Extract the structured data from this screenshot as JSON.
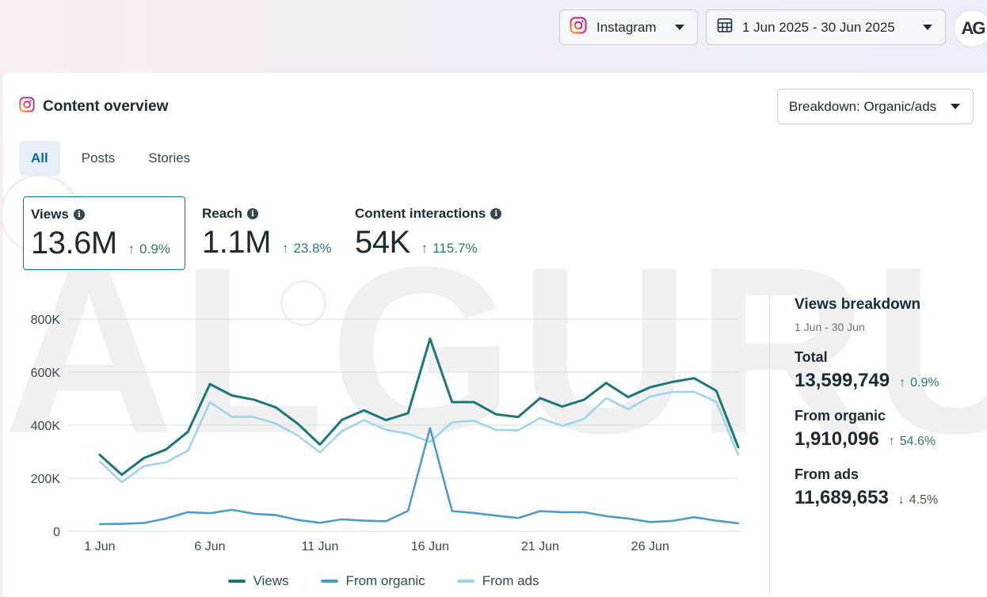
{
  "topbar": {
    "platform_label": "Instagram",
    "date_range_label": "1 Jun 2025 - 30 Jun 2025",
    "avatar_text": "AG"
  },
  "card": {
    "title": "Content overview",
    "breakdown_label": "Breakdown: Organic/ads",
    "watermark_text": "ALGURUS",
    "tabs": [
      {
        "label": "All",
        "active": true
      },
      {
        "label": "Posts",
        "active": false
      },
      {
        "label": "Stories",
        "active": false
      }
    ],
    "metrics": [
      {
        "label": "Views",
        "value": "13.6M",
        "change": "0.9%",
        "direction": "up",
        "selected": true
      },
      {
        "label": "Reach",
        "value": "1.1M",
        "change": "23.8%",
        "direction": "up",
        "selected": false
      },
      {
        "label": "Content interactions",
        "value": "54K",
        "change": "115.7%",
        "direction": "up",
        "selected": false
      }
    ]
  },
  "colors": {
    "views": "#1a7777",
    "organic": "#4c9bc8",
    "ads": "#9fd3ea",
    "grid": "#d9dde1",
    "accent": "#0a61b8"
  },
  "chart_data": {
    "type": "line",
    "x": [
      "1 Jun",
      "2 Jun",
      "3 Jun",
      "4 Jun",
      "5 Jun",
      "6 Jun",
      "7 Jun",
      "8 Jun",
      "9 Jun",
      "10 Jun",
      "11 Jun",
      "12 Jun",
      "13 Jun",
      "14 Jun",
      "15 Jun",
      "16 Jun",
      "17 Jun",
      "18 Jun",
      "19 Jun",
      "20 Jun",
      "21 Jun",
      "22 Jun",
      "23 Jun",
      "24 Jun",
      "25 Jun",
      "26 Jun",
      "27 Jun",
      "28 Jun",
      "29 Jun",
      "30 Jun"
    ],
    "x_tick_labels": [
      "1 Jun",
      "6 Jun",
      "11 Jun",
      "16 Jun",
      "21 Jun",
      "26 Jun"
    ],
    "y_tick_labels": [
      "0",
      "200K",
      "400K",
      "600K",
      "800K"
    ],
    "ylim": [
      0,
      800000
    ],
    "grid": true,
    "legend_position": "bottom",
    "series": [
      {
        "name": "Views",
        "values": [
          288000,
          213000,
          276000,
          308000,
          375000,
          555000,
          512000,
          496000,
          467000,
          405000,
          327000,
          420000,
          456000,
          419000,
          445000,
          726000,
          487000,
          487000,
          441000,
          431000,
          502000,
          470000,
          496000,
          559000,
          506000,
          543000,
          563000,
          577000,
          530000,
          317000
        ]
      },
      {
        "name": "From organic",
        "values": [
          27000,
          28000,
          31000,
          48000,
          72000,
          68000,
          81000,
          66000,
          61000,
          43000,
          32000,
          45000,
          40000,
          38000,
          77000,
          389000,
          76000,
          69000,
          59000,
          50000,
          76000,
          72000,
          72000,
          57000,
          48000,
          35000,
          39000,
          53000,
          40000,
          30000
        ]
      },
      {
        "name": "From ads",
        "values": [
          263000,
          185000,
          246000,
          260000,
          304000,
          487000,
          431000,
          431000,
          406000,
          361000,
          297000,
          378000,
          419000,
          382000,
          368000,
          337000,
          411000,
          417000,
          382000,
          381000,
          427000,
          397000,
          424000,
          502000,
          460000,
          508000,
          525000,
          526000,
          488000,
          288000
        ]
      }
    ]
  },
  "side": {
    "title": "Views breakdown",
    "date": "1 Jun - 30 Jun",
    "items": [
      {
        "label": "Total",
        "value": "13,599,749",
        "change": "0.9%",
        "direction": "up"
      },
      {
        "label": "From organic",
        "value": "1,910,096",
        "change": "54.6%",
        "direction": "up"
      },
      {
        "label": "From ads",
        "value": "11,689,653",
        "change": "4.5%",
        "direction": "down"
      }
    ]
  }
}
